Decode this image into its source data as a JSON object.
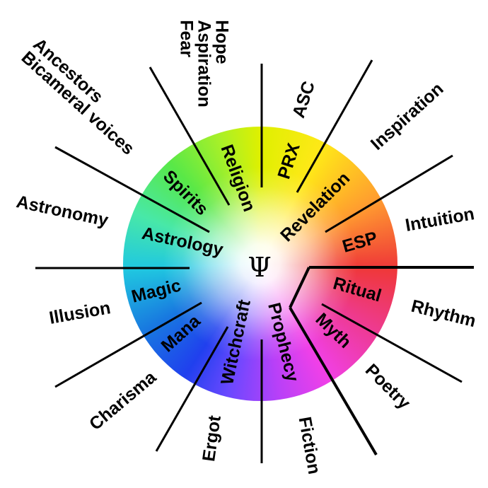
{
  "center_symbol": "Ψ",
  "inner_labels": {
    "religion": "Religion",
    "prx": "PRX",
    "spirits": "Spirits",
    "revelation": "Revelation",
    "astrology": "Astrology",
    "esp": "ESP",
    "magic": "Magic",
    "ritual": "Ritual",
    "mana": "Mana",
    "myth": "Myth",
    "witchcraft": "Witchcraft",
    "prophecy": "Prophecy"
  },
  "outer_labels": {
    "hope": "Hope",
    "aspiration": "Aspiration",
    "fear": "Fear",
    "ancestors": "Ancestors",
    "bicameral_voices": "Bicameral voices",
    "asc": "ASC",
    "inspiration": "Inspiration",
    "astronomy": "Astronomy",
    "intuition": "Intuition",
    "illusion": "Illusion",
    "rhythm": "Rhythm",
    "charisma": "Charisma",
    "poetry": "Poetry",
    "ergot": "Ergot",
    "fiction": "Fiction"
  }
}
